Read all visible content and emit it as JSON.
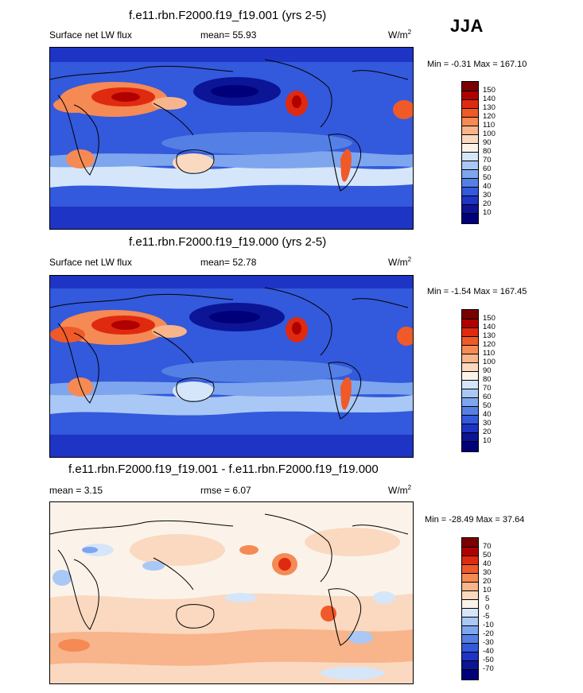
{
  "season": "JJA",
  "panels": [
    {
      "title": "f.e11.rbn.F2000.f19_f19.001 (yrs 2-5)",
      "variable": "Surface net LW flux",
      "mean_label": "mean=  55.93",
      "units_base": "W/m",
      "units_exp": "2",
      "minmax": "Min =  -0.31 Max = 167.10",
      "colorbar_labels": [
        "150",
        "140",
        "130",
        "120",
        "110",
        "100",
        "90",
        "80",
        "70",
        "60",
        "50",
        "40",
        "30",
        "20",
        "10"
      ],
      "colorbar_colors": [
        "#7a0000",
        "#b00000",
        "#e02a10",
        "#f05a28",
        "#f58a55",
        "#f8b48a",
        "#fad9c0",
        "#fbf3ea",
        "#d5e6fa",
        "#a9c8f5",
        "#7ea6ee",
        "#5480e6",
        "#3359dc",
        "#1e34c4",
        "#0b1596",
        "#00007a"
      ]
    },
    {
      "title": "f.e11.rbn.F2000.f19_f19.000 (yrs 2-5)",
      "variable": "Surface net LW flux",
      "mean_label": "mean=  52.78",
      "units_base": "W/m",
      "units_exp": "2",
      "minmax": "Min =  -1.54 Max = 167.45",
      "colorbar_labels": [
        "150",
        "140",
        "130",
        "120",
        "110",
        "100",
        "90",
        "80",
        "70",
        "60",
        "50",
        "40",
        "30",
        "20",
        "10"
      ],
      "colorbar_colors": [
        "#7a0000",
        "#b00000",
        "#e02a10",
        "#f05a28",
        "#f58a55",
        "#f8b48a",
        "#fad9c0",
        "#fbf3ea",
        "#d5e6fa",
        "#a9c8f5",
        "#7ea6ee",
        "#5480e6",
        "#3359dc",
        "#1e34c4",
        "#0b1596",
        "#00007a"
      ]
    },
    {
      "title": "f.e11.rbn.F2000.f19_f19.001 - f.e11.rbn.F2000.f19_f19.000",
      "mean_label": "mean =   3.15",
      "rmse_label": "rmse =   6.07",
      "units_base": "W/m",
      "units_exp": "2",
      "minmax": "Min = -28.49 Max =  37.64",
      "colorbar_labels": [
        "70",
        "50",
        "40",
        "30",
        "20",
        "10",
        "5",
        "0",
        "-5",
        "-10",
        "-20",
        "-30",
        "-40",
        "-50",
        "-70"
      ],
      "colorbar_colors": [
        "#7a0000",
        "#b00000",
        "#e02a10",
        "#f05a28",
        "#f58a55",
        "#f8b48a",
        "#fad9c0",
        "#fbf3ea",
        "#d5e6fa",
        "#a9c8f5",
        "#7ea6ee",
        "#5480e6",
        "#3359dc",
        "#1e34c4",
        "#0b1596",
        "#00007a"
      ]
    }
  ]
}
